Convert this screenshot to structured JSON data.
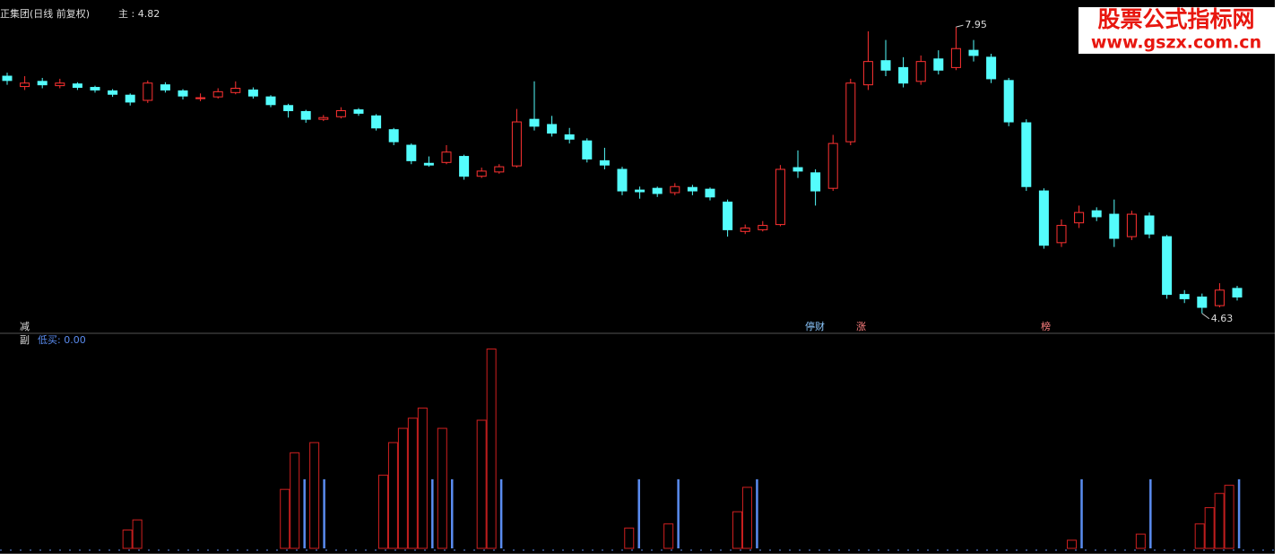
{
  "header": {
    "title": "正集团(日线 前复权)",
    "main_label": "主 : 4.82"
  },
  "watermark": {
    "name": "股票公式指标网",
    "url": "www.gszx.com.cn"
  },
  "signals": {
    "left": "减",
    "stop": "停财",
    "rise": "涨",
    "list": "榜"
  },
  "sub_header": {
    "name": "副",
    "indicator": "低买: 0.00"
  },
  "chart_data": [
    {
      "type": "candlestick",
      "ylim": [
        4.42,
        8.18
      ],
      "up_color": "#ff3232",
      "down_color": "#54fcfc",
      "annotations": [
        {
          "value": 7.95,
          "label": "7.95"
        },
        {
          "value": 4.63,
          "label": "4.63"
        }
      ],
      "candles": [
        [
          7.38,
          7.42,
          7.28,
          7.33
        ],
        [
          7.26,
          7.38,
          7.22,
          7.3
        ],
        [
          7.32,
          7.36,
          7.24,
          7.28
        ],
        [
          7.27,
          7.35,
          7.24,
          7.3
        ],
        [
          7.29,
          7.31,
          7.22,
          7.25
        ],
        [
          7.25,
          7.27,
          7.19,
          7.22
        ],
        [
          7.21,
          7.23,
          7.14,
          7.17
        ],
        [
          7.16,
          7.18,
          7.04,
          7.08
        ],
        [
          7.1,
          7.33,
          7.07,
          7.3
        ],
        [
          7.28,
          7.31,
          7.19,
          7.22
        ],
        [
          7.21,
          7.23,
          7.11,
          7.15
        ],
        [
          7.12,
          7.18,
          7.09,
          7.13
        ],
        [
          7.14,
          7.24,
          7.12,
          7.2
        ],
        [
          7.19,
          7.32,
          7.17,
          7.24
        ],
        [
          7.22,
          7.25,
          7.12,
          7.15
        ],
        [
          7.14,
          7.16,
          7.02,
          7.05
        ],
        [
          7.04,
          7.06,
          6.9,
          6.98
        ],
        [
          6.97,
          6.99,
          6.84,
          6.88
        ],
        [
          6.88,
          6.93,
          6.86,
          6.9
        ],
        [
          6.91,
          7.02,
          6.89,
          6.98
        ],
        [
          6.99,
          7.01,
          6.92,
          6.95
        ],
        [
          6.92,
          6.94,
          6.75,
          6.78
        ],
        [
          6.76,
          6.78,
          6.58,
          6.62
        ],
        [
          6.58,
          6.6,
          6.36,
          6.4
        ],
        [
          6.37,
          6.45,
          6.33,
          6.35
        ],
        [
          6.38,
          6.58,
          6.36,
          6.5
        ],
        [
          6.45,
          6.47,
          6.18,
          6.22
        ],
        [
          6.22,
          6.32,
          6.2,
          6.28
        ],
        [
          6.27,
          6.36,
          6.25,
          6.33
        ],
        [
          6.34,
          7.0,
          6.32,
          6.85
        ],
        [
          6.88,
          7.32,
          6.75,
          6.8
        ],
        [
          6.82,
          6.92,
          6.68,
          6.72
        ],
        [
          6.7,
          6.78,
          6.6,
          6.65
        ],
        [
          6.63,
          6.66,
          6.38,
          6.42
        ],
        [
          6.4,
          6.55,
          6.3,
          6.35
        ],
        [
          6.3,
          6.33,
          6.0,
          6.05
        ],
        [
          6.06,
          6.1,
          5.96,
          6.04
        ],
        [
          6.08,
          6.1,
          5.98,
          6.02
        ],
        [
          6.03,
          6.14,
          6.0,
          6.1
        ],
        [
          6.09,
          6.12,
          6.0,
          6.05
        ],
        [
          6.07,
          6.09,
          5.94,
          5.98
        ],
        [
          5.92,
          5.95,
          5.52,
          5.6
        ],
        [
          5.58,
          5.66,
          5.55,
          5.62
        ],
        [
          5.6,
          5.7,
          5.58,
          5.65
        ],
        [
          5.66,
          6.35,
          5.64,
          6.3
        ],
        [
          6.32,
          6.52,
          6.2,
          6.28
        ],
        [
          6.26,
          6.3,
          5.88,
          6.05
        ],
        [
          6.08,
          6.7,
          6.05,
          6.6
        ],
        [
          6.62,
          7.35,
          6.58,
          7.3
        ],
        [
          7.28,
          7.9,
          7.22,
          7.55
        ],
        [
          7.56,
          7.8,
          7.38,
          7.45
        ],
        [
          7.48,
          7.6,
          7.25,
          7.3
        ],
        [
          7.32,
          7.62,
          7.28,
          7.55
        ],
        [
          7.58,
          7.68,
          7.4,
          7.45
        ],
        [
          7.48,
          7.95,
          7.45,
          7.7
        ],
        [
          7.68,
          7.8,
          7.55,
          7.62
        ],
        [
          7.6,
          7.64,
          7.3,
          7.35
        ],
        [
          7.33,
          7.36,
          6.8,
          6.85
        ],
        [
          6.84,
          6.88,
          6.05,
          6.1
        ],
        [
          6.05,
          6.08,
          5.38,
          5.42
        ],
        [
          5.45,
          5.72,
          5.4,
          5.65
        ],
        [
          5.68,
          5.88,
          5.62,
          5.8
        ],
        [
          5.82,
          5.86,
          5.7,
          5.75
        ],
        [
          5.78,
          5.95,
          5.4,
          5.5
        ],
        [
          5.52,
          5.82,
          5.48,
          5.78
        ],
        [
          5.76,
          5.8,
          5.5,
          5.55
        ],
        [
          5.52,
          5.54,
          4.8,
          4.85
        ],
        [
          4.85,
          4.9,
          4.75,
          4.8
        ],
        [
          4.82,
          4.86,
          4.63,
          4.7
        ],
        [
          4.72,
          4.98,
          4.7,
          4.9
        ],
        [
          4.92,
          4.95,
          4.78,
          4.82
        ]
      ]
    },
    {
      "type": "bar",
      "xlim": [
        -0.5,
        128
      ],
      "ylim": [
        0,
        100
      ],
      "series": [
        {
          "color": "#d02020",
          "x": [
            12,
            13,
            28,
            29,
            31,
            38,
            39,
            40,
            41,
            42,
            44,
            48,
            49,
            63,
            67,
            74,
            75,
            108,
            115,
            121,
            122,
            123,
            124
          ],
          "values": [
            9,
            14,
            29,
            47,
            52,
            36,
            52,
            59,
            64,
            69,
            59,
            63,
            98,
            10,
            12,
            18,
            30,
            4,
            7,
            12,
            20,
            27,
            31
          ]
        },
        {
          "color": "#5a8cf0",
          "x": [
            30,
            32,
            43,
            45,
            50,
            64,
            68,
            76,
            109,
            116,
            125
          ],
          "values": [
            34,
            34,
            34,
            34,
            34,
            34,
            34,
            34,
            34,
            34,
            34
          ]
        }
      ]
    }
  ]
}
